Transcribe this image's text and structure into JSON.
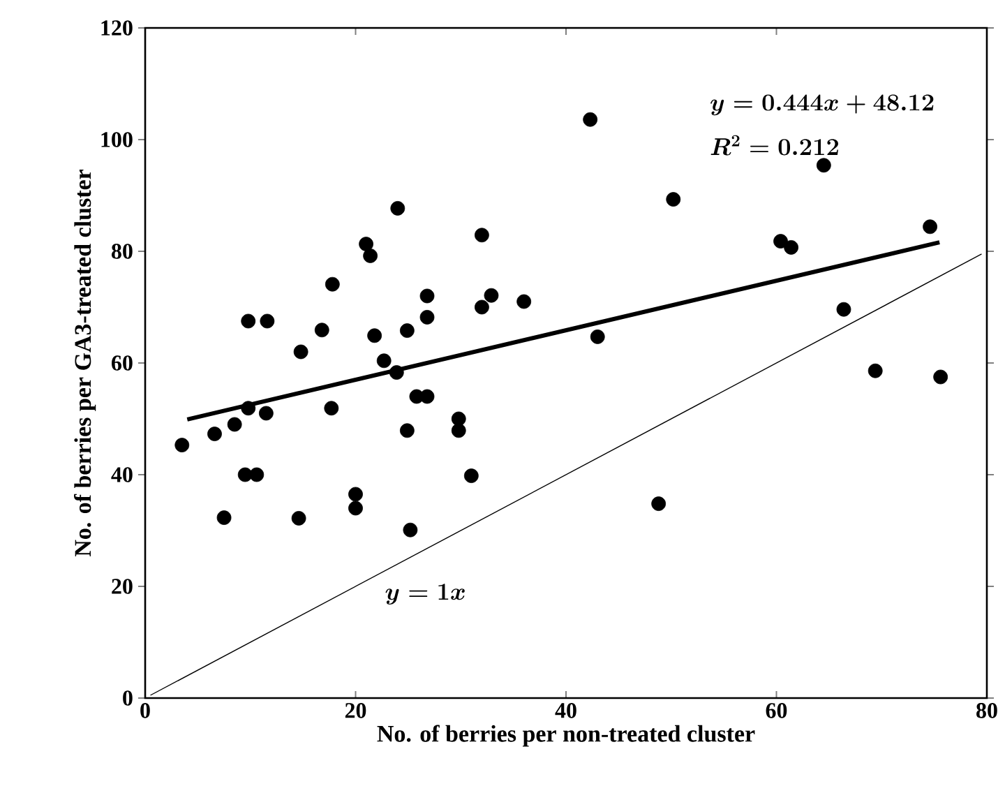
{
  "chart_data": {
    "type": "scatter",
    "xlabel": "No. of berries per non-treated cluster",
    "ylabel": "No. of berries per GA3-treated cluster",
    "xlim": [
      0,
      80
    ],
    "ylim": [
      0,
      120
    ],
    "xticks": [
      0,
      20,
      40,
      60,
      80
    ],
    "yticks": [
      0,
      20,
      40,
      60,
      80,
      100,
      120
    ],
    "annotations": [
      "y=0.444x+48.12",
      "R^{2}=0.212",
      "y=1x"
    ],
    "series": [
      {
        "marker": "circle",
        "color": "#000000",
        "x": [
          3.5,
          6.6,
          8.5,
          9.8,
          11.5,
          9.5,
          10.6,
          7.5,
          14.6,
          17.7,
          20,
          20,
          25.2,
          24.9,
          25.8,
          26.8,
          29.8,
          29.8,
          31,
          9.8,
          11.6,
          14.8,
          16.8,
          17.8,
          21,
          21.4,
          24,
          21.8,
          22.7,
          23.9,
          24.9,
          26.8,
          26.8,
          32,
          32,
          32.9,
          36,
          42.3,
          50.2,
          43,
          60.4,
          61.4,
          64.5,
          74.6,
          66.4,
          69.4,
          75.6,
          48.8
        ],
        "values": [
          45.3,
          47.3,
          49,
          51.9,
          51,
          40,
          40,
          32.3,
          32.2,
          51.9,
          36.5,
          34,
          30.1,
          47.9,
          54,
          54,
          50,
          47.9,
          39.8,
          67.5,
          67.5,
          62,
          65.9,
          74.1,
          81.3,
          79.2,
          87.7,
          64.9,
          60.4,
          58.3,
          65.8,
          72,
          68.2,
          82.9,
          70,
          72.1,
          71,
          103.6,
          89.3,
          64.7,
          81.8,
          80.7,
          95.4,
          84.4,
          69.6,
          58.6,
          57.5,
          34.8
        ]
      },
      {
        "type": "line",
        "marker": "none",
        "color": "#000000",
        "x": [
          4,
          75.5
        ],
        "values": [
          49.9,
          81.6
        ]
      },
      {
        "type": "line",
        "marker": "none",
        "color": "#000000",
        "x": [
          0.5,
          79.5
        ],
        "values": [
          0.5,
          79.5
        ]
      }
    ]
  }
}
